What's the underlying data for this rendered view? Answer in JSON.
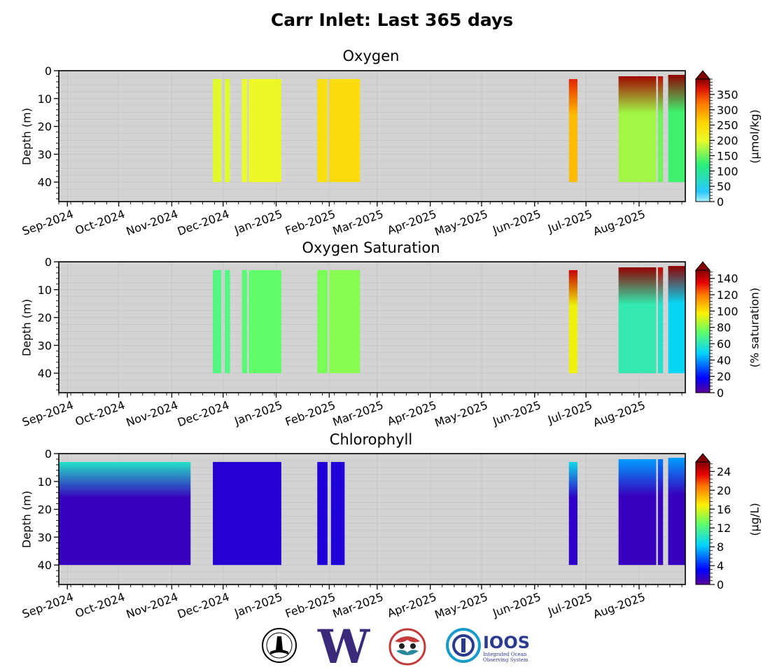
{
  "figure": {
    "title": "Carr Inlet: Last 365 days"
  },
  "logos": [
    {
      "name": "noaa-style-seal",
      "icon": "circular-seal-icon"
    },
    {
      "name": "university-of-washington",
      "letter": "W",
      "color": "#3b2a7a"
    },
    {
      "name": "coastal-tribal-emblem",
      "icon": "tribal-art-icon",
      "color": "#c23a3a"
    },
    {
      "name": "ioos",
      "text": "IOOS",
      "subtitle_line1": "Integrated Ocean",
      "subtitle_line2": "Observing System",
      "color": "#2a3b8f"
    }
  ],
  "chart_data": [
    {
      "type": "heatmap",
      "title": "Oxygen",
      "ylabel": "Depth (m)",
      "colorbar_label": "(μmol/kg)",
      "colormap": "jet-like (cyan→green→yellow→orange→dark red)",
      "extend": "max",
      "ylim": [
        47,
        0
      ],
      "yticks": [
        0,
        10,
        20,
        30,
        40
      ],
      "xticks": [
        "Sep-2024",
        "Oct-2024",
        "Nov-2024",
        "Dec-2024",
        "Jan-2025",
        "Feb-2025",
        "Mar-2025",
        "Apr-2025",
        "May-2025",
        "Jun-2025",
        "Jul-2025",
        "Aug-2025"
      ],
      "xlim": [
        "2024-08-27",
        "2025-08-28"
      ],
      "vmin": 0,
      "vmax": 400,
      "cbar_ticks": [
        0,
        50,
        100,
        150,
        200,
        250,
        300,
        350
      ],
      "grid": true,
      "background": "#d3d3d3",
      "series": [
        {
          "start": "2024-11-25",
          "end": "2024-11-30",
          "depth": [
            3,
            40
          ],
          "value": 195
        },
        {
          "start": "2024-12-02",
          "end": "2024-12-05",
          "depth": [
            3,
            40
          ],
          "value": 195
        },
        {
          "start": "2024-12-12",
          "end": "2024-12-15",
          "depth": [
            3,
            40
          ],
          "value": 200
        },
        {
          "start": "2024-12-16",
          "end": "2025-01-04",
          "depth": [
            3,
            40
          ],
          "value": 205
        },
        {
          "start": "2025-01-25",
          "end": "2025-01-31",
          "depth": [
            3,
            40
          ],
          "value": 240
        },
        {
          "start": "2025-02-01",
          "end": "2025-02-19",
          "depth": [
            3,
            40
          ],
          "value": 245
        },
        {
          "start": "2025-06-21",
          "end": "2025-06-26",
          "depth": [
            3,
            40
          ],
          "value": 275,
          "surface": 360
        },
        {
          "start": "2025-07-20",
          "end": "2025-08-11",
          "depth": [
            2,
            40
          ],
          "value": 170,
          "surface": 390
        },
        {
          "start": "2025-08-12",
          "end": "2025-08-15",
          "depth": [
            2,
            40
          ],
          "value": 150,
          "surface": 380
        },
        {
          "start": "2025-08-18",
          "end": "2025-08-28",
          "depth": [
            1.5,
            40
          ],
          "value": 130,
          "surface": 395
        }
      ]
    },
    {
      "type": "heatmap",
      "title": "Oxygen Saturation",
      "ylabel": "Depth (m)",
      "colorbar_label": "(% saturation)",
      "colormap": "jet (purple→blue→cyan→green→yellow→red→dark red)",
      "extend": "max",
      "ylim": [
        47,
        0
      ],
      "yticks": [
        0,
        10,
        20,
        30,
        40
      ],
      "xticks": [
        "Sep-2024",
        "Oct-2024",
        "Nov-2024",
        "Dec-2024",
        "Jan-2025",
        "Feb-2025",
        "Mar-2025",
        "Apr-2025",
        "May-2025",
        "Jun-2025",
        "Jul-2025",
        "Aug-2025"
      ],
      "xlim": [
        "2024-08-27",
        "2025-08-28"
      ],
      "vmin": 0,
      "vmax": 150,
      "cbar_ticks": [
        0,
        20,
        40,
        60,
        80,
        100,
        120,
        140
      ],
      "grid": true,
      "background": "#d3d3d3",
      "series": [
        {
          "start": "2024-11-25",
          "end": "2024-11-30",
          "depth": [
            3,
            40
          ],
          "value": 70
        },
        {
          "start": "2024-12-02",
          "end": "2024-12-05",
          "depth": [
            3,
            40
          ],
          "value": 70
        },
        {
          "start": "2024-12-12",
          "end": "2024-12-15",
          "depth": [
            3,
            40
          ],
          "value": 72
        },
        {
          "start": "2024-12-16",
          "end": "2025-01-04",
          "depth": [
            3,
            40
          ],
          "value": 74
        },
        {
          "start": "2025-01-25",
          "end": "2025-01-31",
          "depth": [
            3,
            40
          ],
          "value": 78
        },
        {
          "start": "2025-02-01",
          "end": "2025-02-19",
          "depth": [
            3,
            40
          ],
          "value": 80
        },
        {
          "start": "2025-06-21",
          "end": "2025-06-26",
          "depth": [
            3,
            40
          ],
          "value": 95,
          "surface": 140
        },
        {
          "start": "2025-07-20",
          "end": "2025-08-11",
          "depth": [
            2,
            40
          ],
          "value": 62,
          "surface": 148
        },
        {
          "start": "2025-08-12",
          "end": "2025-08-15",
          "depth": [
            2,
            40
          ],
          "value": 58,
          "surface": 140
        },
        {
          "start": "2025-08-18",
          "end": "2025-08-28",
          "depth": [
            1.5,
            40
          ],
          "value": 50,
          "surface": 148
        }
      ]
    },
    {
      "type": "heatmap",
      "title": "Chlorophyll",
      "ylabel": "Depth (m)",
      "colorbar_label": "(μg/L)",
      "colormap": "jet (purple→blue→cyan→green→yellow→red→dark red)",
      "extend": "max",
      "ylim": [
        47,
        0
      ],
      "yticks": [
        0,
        10,
        20,
        30,
        40
      ],
      "xticks": [
        "Sep-2024",
        "Oct-2024",
        "Nov-2024",
        "Dec-2024",
        "Jan-2025",
        "Feb-2025",
        "Mar-2025",
        "Apr-2025",
        "May-2025",
        "Jun-2025",
        "Jul-2025",
        "Aug-2025"
      ],
      "xlim": [
        "2024-08-27",
        "2025-08-28"
      ],
      "vmin": 0,
      "vmax": 26,
      "cbar_ticks": [
        0,
        4,
        8,
        12,
        16,
        20,
        24
      ],
      "grid": true,
      "background": "#d3d3d3",
      "series": [
        {
          "start": "2024-08-27",
          "end": "2024-11-12",
          "depth": [
            3,
            40
          ],
          "value": 1.2,
          "surface": 10
        },
        {
          "start": "2024-11-25",
          "end": "2025-01-04",
          "depth": [
            3,
            40
          ],
          "value": 1.8
        },
        {
          "start": "2025-01-25",
          "end": "2025-01-31",
          "depth": [
            3,
            40
          ],
          "value": 2.0
        },
        {
          "start": "2025-02-02",
          "end": "2025-02-10",
          "depth": [
            3,
            40
          ],
          "value": 2.0
        },
        {
          "start": "2025-06-21",
          "end": "2025-06-26",
          "depth": [
            3,
            40
          ],
          "value": 1.5,
          "surface": 9
        },
        {
          "start": "2025-07-20",
          "end": "2025-08-11",
          "depth": [
            2,
            40
          ],
          "value": 1.2,
          "surface": 7
        },
        {
          "start": "2025-08-12",
          "end": "2025-08-15",
          "depth": [
            2,
            40
          ],
          "value": 1.2,
          "surface": 6
        },
        {
          "start": "2025-08-18",
          "end": "2025-08-28",
          "depth": [
            1.5,
            40
          ],
          "value": 1.2,
          "surface": 7
        }
      ]
    }
  ]
}
